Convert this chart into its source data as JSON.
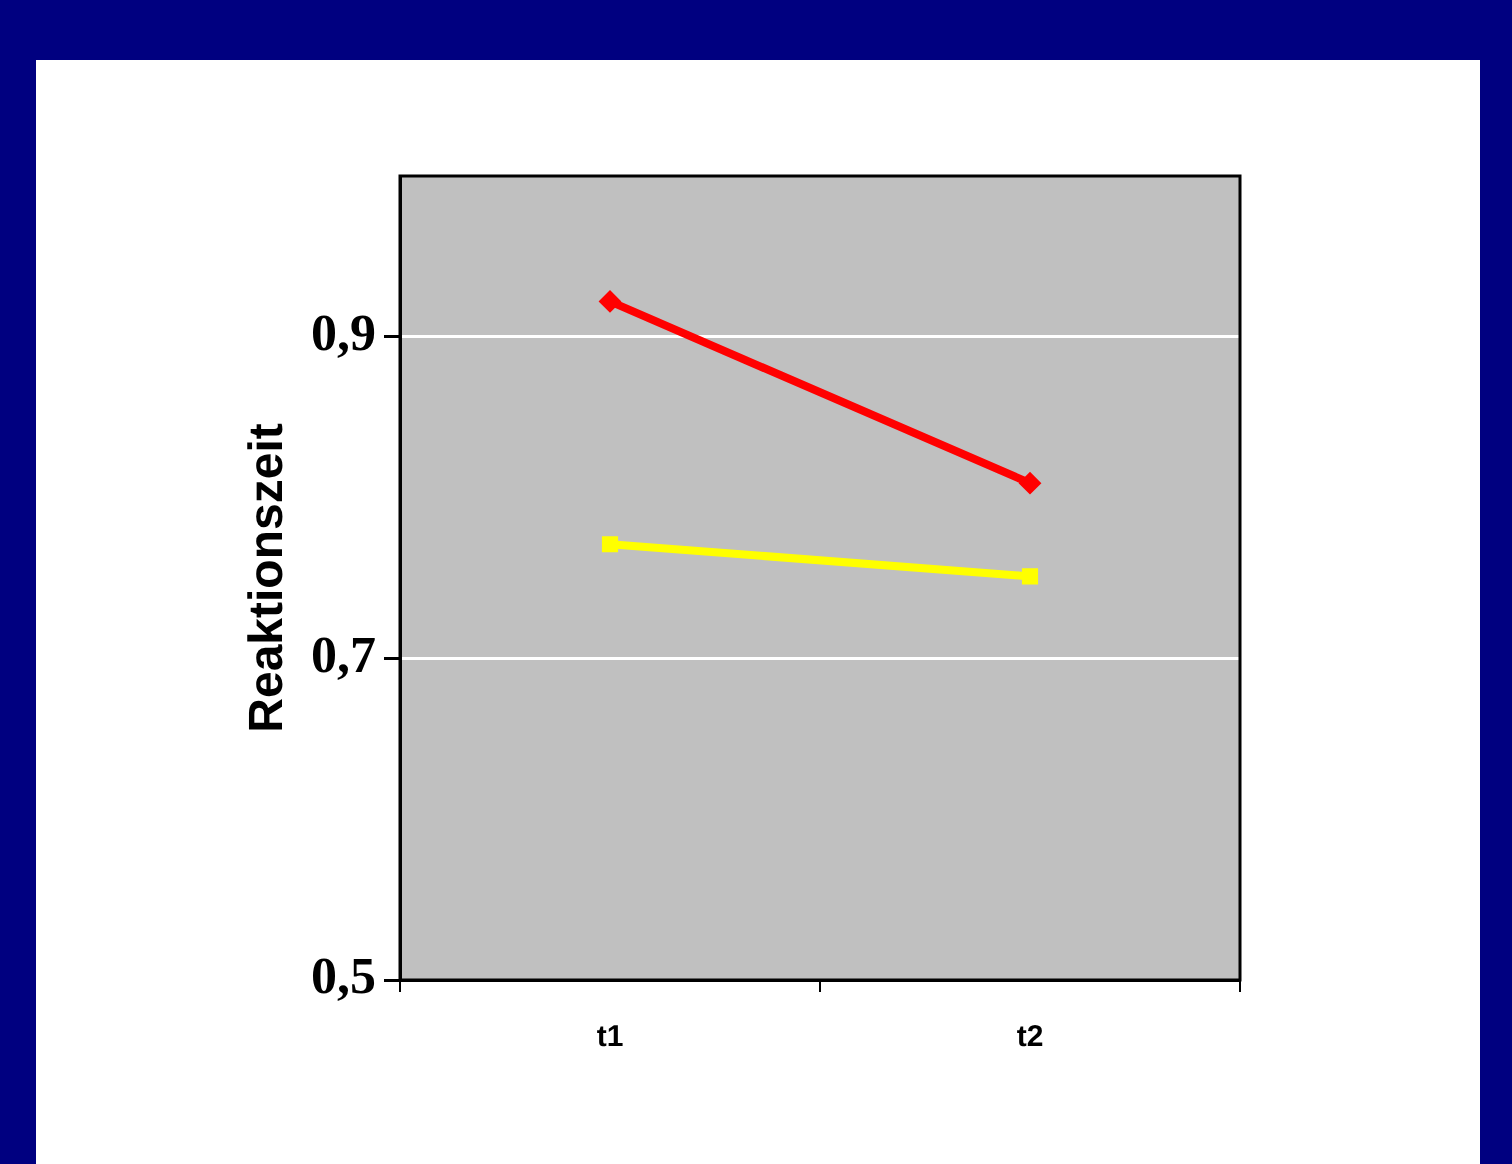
{
  "chart_data": {
    "type": "line",
    "ylabel": "Reaktionszeit",
    "categories": [
      "t1",
      "t2"
    ],
    "series": [
      {
        "color": "#ff0000",
        "marker": "diamond",
        "values": [
          0.922,
          0.809
        ]
      },
      {
        "color": "#ffff00",
        "marker": "square",
        "values": [
          0.771,
          0.751
        ]
      }
    ],
    "ylim": [
      0.5,
      1.0
    ],
    "yticks": [
      {
        "value": 0.5,
        "label": "0,5"
      },
      {
        "value": 0.7,
        "label": "0,7"
      },
      {
        "value": 0.9,
        "label": "0,9"
      }
    ],
    "grid": "y",
    "legend": false,
    "line_style": "solid"
  }
}
